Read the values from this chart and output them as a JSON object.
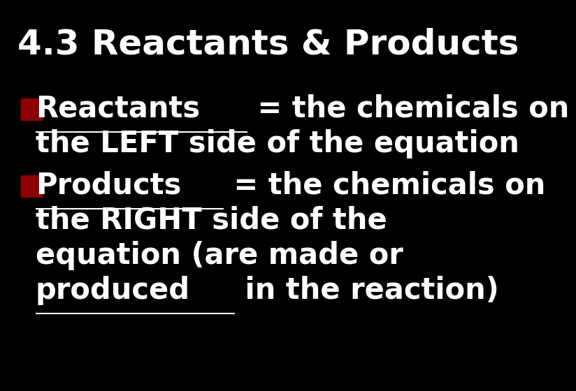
{
  "background_color": "#000000",
  "title": "4.3 Reactants & Products",
  "title_fontsize": 36,
  "title_color": "#ffffff",
  "bullet_color": "#8b0000",
  "text_color": "#ffffff",
  "body_fontsize": 30,
  "bullet1_underlined": "Reactants",
  "bullet1_rest": " = the chemicals on",
  "bullet1_line2": "the LEFT side of the equation",
  "bullet2_underlined": "Products",
  "bullet2_rest": " = the chemicals on",
  "bullet2_line2": "the RIGHT side of the",
  "bullet2_line3": "equation (are made or",
  "bullet2_underlined2": "produced",
  "bullet2_rest2": " in the reaction)"
}
